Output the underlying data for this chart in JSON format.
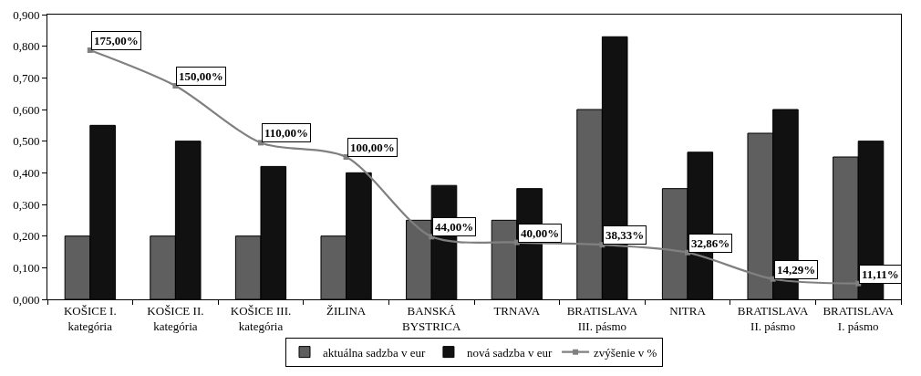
{
  "chart_data": {
    "type": "bar",
    "categories": [
      "KOŠICE I. kategória",
      "KOŠICE II. kategória",
      "KOŠICE III. kategória",
      "ŽILINA",
      "BANSKÁ BYSTRICA",
      "TRNAVA",
      "BRATISLAVA III. pásmo",
      "NITRA",
      "BRATISLAVA II. pásmo",
      "BRATISLAVA I. pásmo"
    ],
    "series": [
      {
        "name": "aktuálna sadzba v eur",
        "color": "#5f5f5f",
        "values": [
          0.2,
          0.2,
          0.2,
          0.2,
          0.25,
          0.25,
          0.6,
          0.35,
          0.525,
          0.45
        ]
      },
      {
        "name": "nová sadzba v eur",
        "color": "#111111",
        "values": [
          0.55,
          0.5,
          0.42,
          0.4,
          0.36,
          0.35,
          0.83,
          0.465,
          0.6,
          0.5
        ]
      },
      {
        "name": "zvýšenie v %",
        "type": "line",
        "axis": "y2",
        "color": "#808080",
        "marker": "square",
        "line_style": "solid",
        "values": [
          175,
          150,
          110,
          100,
          44,
          40,
          38.33,
          32.86,
          14.29,
          11.11
        ],
        "value_labels": [
          "175,00%",
          "150,00%",
          "110,00%",
          "100,00%",
          "44,00%",
          "40,00%",
          "38,33%",
          "32,86%",
          "14,29%",
          "11,11%"
        ]
      }
    ],
    "ylim": [
      0,
      0.9
    ],
    "yticks": [
      {
        "value": 0,
        "label": "0,000"
      },
      {
        "value": 0.1,
        "label": "0,100"
      },
      {
        "value": 0.2,
        "label": "0,200"
      },
      {
        "value": 0.3,
        "label": "0,300"
      },
      {
        "value": 0.4,
        "label": "0,400"
      },
      {
        "value": 0.5,
        "label": "0,500"
      },
      {
        "value": 0.6,
        "label": "0,600"
      },
      {
        "value": 0.7,
        "label": "0,700"
      },
      {
        "value": 0.8,
        "label": "0,800"
      },
      {
        "value": 0.9,
        "label": "0,900"
      }
    ],
    "y2lim": [
      0,
      200
    ],
    "legend": "bottom"
  }
}
